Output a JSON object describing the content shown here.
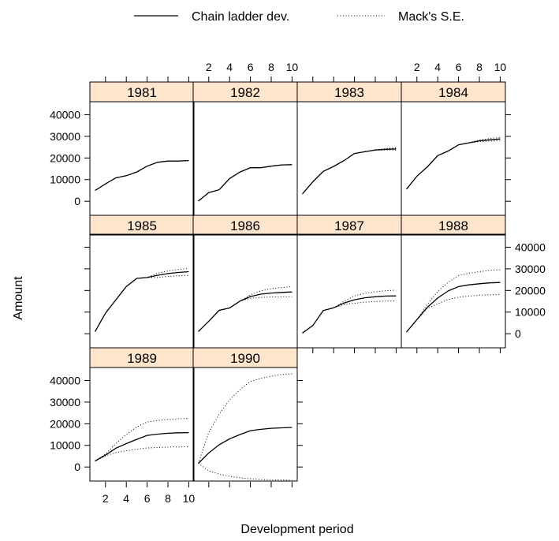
{
  "chart_data": {
    "type": "line",
    "layout": "trellis",
    "xlabel": "Development period",
    "ylabel": "Amount",
    "xlim": [
      0.5,
      10.5
    ],
    "ylim": [
      -6500,
      46000
    ],
    "x_ticks": [
      2,
      4,
      6,
      8,
      10
    ],
    "y_ticks": [
      0,
      10000,
      20000,
      30000,
      40000
    ],
    "legend": {
      "placement": "top",
      "entries": [
        {
          "label": "Chain ladder dev.",
          "style": "solid"
        },
        {
          "label": "Mack's S.E.",
          "style": "dotted"
        }
      ]
    },
    "x": [
      1,
      2,
      3,
      4,
      5,
      6,
      7,
      8,
      9,
      10
    ],
    "panels": [
      {
        "label": "1981",
        "dev": [
          5000,
          8000,
          10800,
          11800,
          13500,
          16200,
          18000,
          18600,
          18600,
          18800
        ],
        "upper": [
          5000,
          8000,
          10800,
          11800,
          13500,
          16200,
          18000,
          18600,
          18600,
          18800
        ],
        "lower": [
          5000,
          8000,
          10800,
          11800,
          13500,
          16200,
          18000,
          18600,
          18600,
          18800
        ]
      },
      {
        "label": "1982",
        "dev": [
          100,
          4000,
          5300,
          10500,
          13500,
          15500,
          15500,
          16200,
          16800,
          16900
        ],
        "upper": [
          100,
          4000,
          5300,
          10500,
          13500,
          15500,
          15500,
          16200,
          16800,
          16900
        ],
        "lower": [
          100,
          4000,
          5300,
          10500,
          13500,
          15500,
          15500,
          16200,
          16800,
          16900
        ]
      },
      {
        "label": "1983",
        "dev": [
          3400,
          9000,
          13800,
          16100,
          18800,
          22100,
          22900,
          23700,
          24000,
          24200
        ],
        "upper": [
          3400,
          9000,
          13800,
          16100,
          18800,
          22100,
          22900,
          23700,
          24300,
          24700
        ],
        "lower": [
          3400,
          9000,
          13800,
          16100,
          18800,
          22100,
          22900,
          23700,
          23700,
          23700
        ]
      },
      {
        "label": "1984",
        "dev": [
          5600,
          11600,
          15900,
          21100,
          23200,
          26100,
          27000,
          27900,
          28400,
          28800
        ],
        "upper": [
          5600,
          11600,
          15900,
          21100,
          23200,
          26100,
          27000,
          28300,
          29000,
          29500
        ],
        "lower": [
          5600,
          11600,
          15900,
          21100,
          23200,
          26100,
          27000,
          27500,
          27800,
          28100
        ]
      },
      {
        "label": "1985",
        "dev": [
          1000,
          9500,
          15700,
          21800,
          25600,
          26000,
          27000,
          27800,
          28300,
          28700
        ],
        "upper": [
          1000,
          9500,
          15700,
          21800,
          25600,
          26000,
          28000,
          29000,
          29700,
          30200
        ],
        "lower": [
          1000,
          9500,
          15700,
          21800,
          25600,
          26000,
          26000,
          26500,
          26800,
          27000
        ]
      },
      {
        "label": "1986",
        "dev": [
          1000,
          5800,
          10800,
          11900,
          15100,
          17200,
          18300,
          18800,
          19100,
          19300
        ],
        "upper": [
          1000,
          5800,
          10800,
          11900,
          15100,
          18000,
          19800,
          20800,
          21400,
          21800
        ],
        "lower": [
          1000,
          5800,
          10800,
          11900,
          15100,
          16400,
          16800,
          17000,
          17100,
          17100
        ]
      },
      {
        "label": "1987",
        "dev": [
          300,
          3800,
          10700,
          12000,
          14200,
          15700,
          16600,
          17100,
          17400,
          17500
        ],
        "upper": [
          300,
          3800,
          10700,
          12000,
          15000,
          17500,
          18700,
          19400,
          19900,
          20100
        ],
        "lower": [
          300,
          3800,
          10700,
          12000,
          13500,
          14100,
          14600,
          14900,
          15100,
          15200
        ]
      },
      {
        "label": "1988",
        "dev": [
          800,
          6500,
          12200,
          16500,
          19800,
          21800,
          22600,
          23100,
          23500,
          23700
        ],
        "upper": [
          800,
          6500,
          13600,
          19500,
          23800,
          26900,
          28000,
          28700,
          29300,
          29600
        ],
        "lower": [
          800,
          6500,
          11800,
          13800,
          15800,
          16900,
          17400,
          17800,
          18000,
          18200
        ]
      },
      {
        "label": "1989",
        "dev": [
          2800,
          5500,
          8700,
          10800,
          12800,
          14600,
          15200,
          15600,
          15800,
          15900
        ],
        "upper": [
          2800,
          6000,
          10800,
          15000,
          18500,
          20800,
          21500,
          22000,
          22300,
          22500
        ],
        "lower": [
          2800,
          5100,
          6700,
          7500,
          8200,
          8800,
          9000,
          9200,
          9300,
          9400
        ]
      },
      {
        "label": "1990",
        "dev": [
          1700,
          6500,
          10300,
          13000,
          15000,
          16800,
          17400,
          17900,
          18100,
          18300
        ],
        "upper": [
          1700,
          16000,
          24500,
          31000,
          35800,
          39500,
          41000,
          42000,
          42800,
          43100
        ],
        "lower": [
          1700,
          -1800,
          -3300,
          -4300,
          -5000,
          -5400,
          -5700,
          -5900,
          -6000,
          -6100
        ]
      }
    ]
  }
}
